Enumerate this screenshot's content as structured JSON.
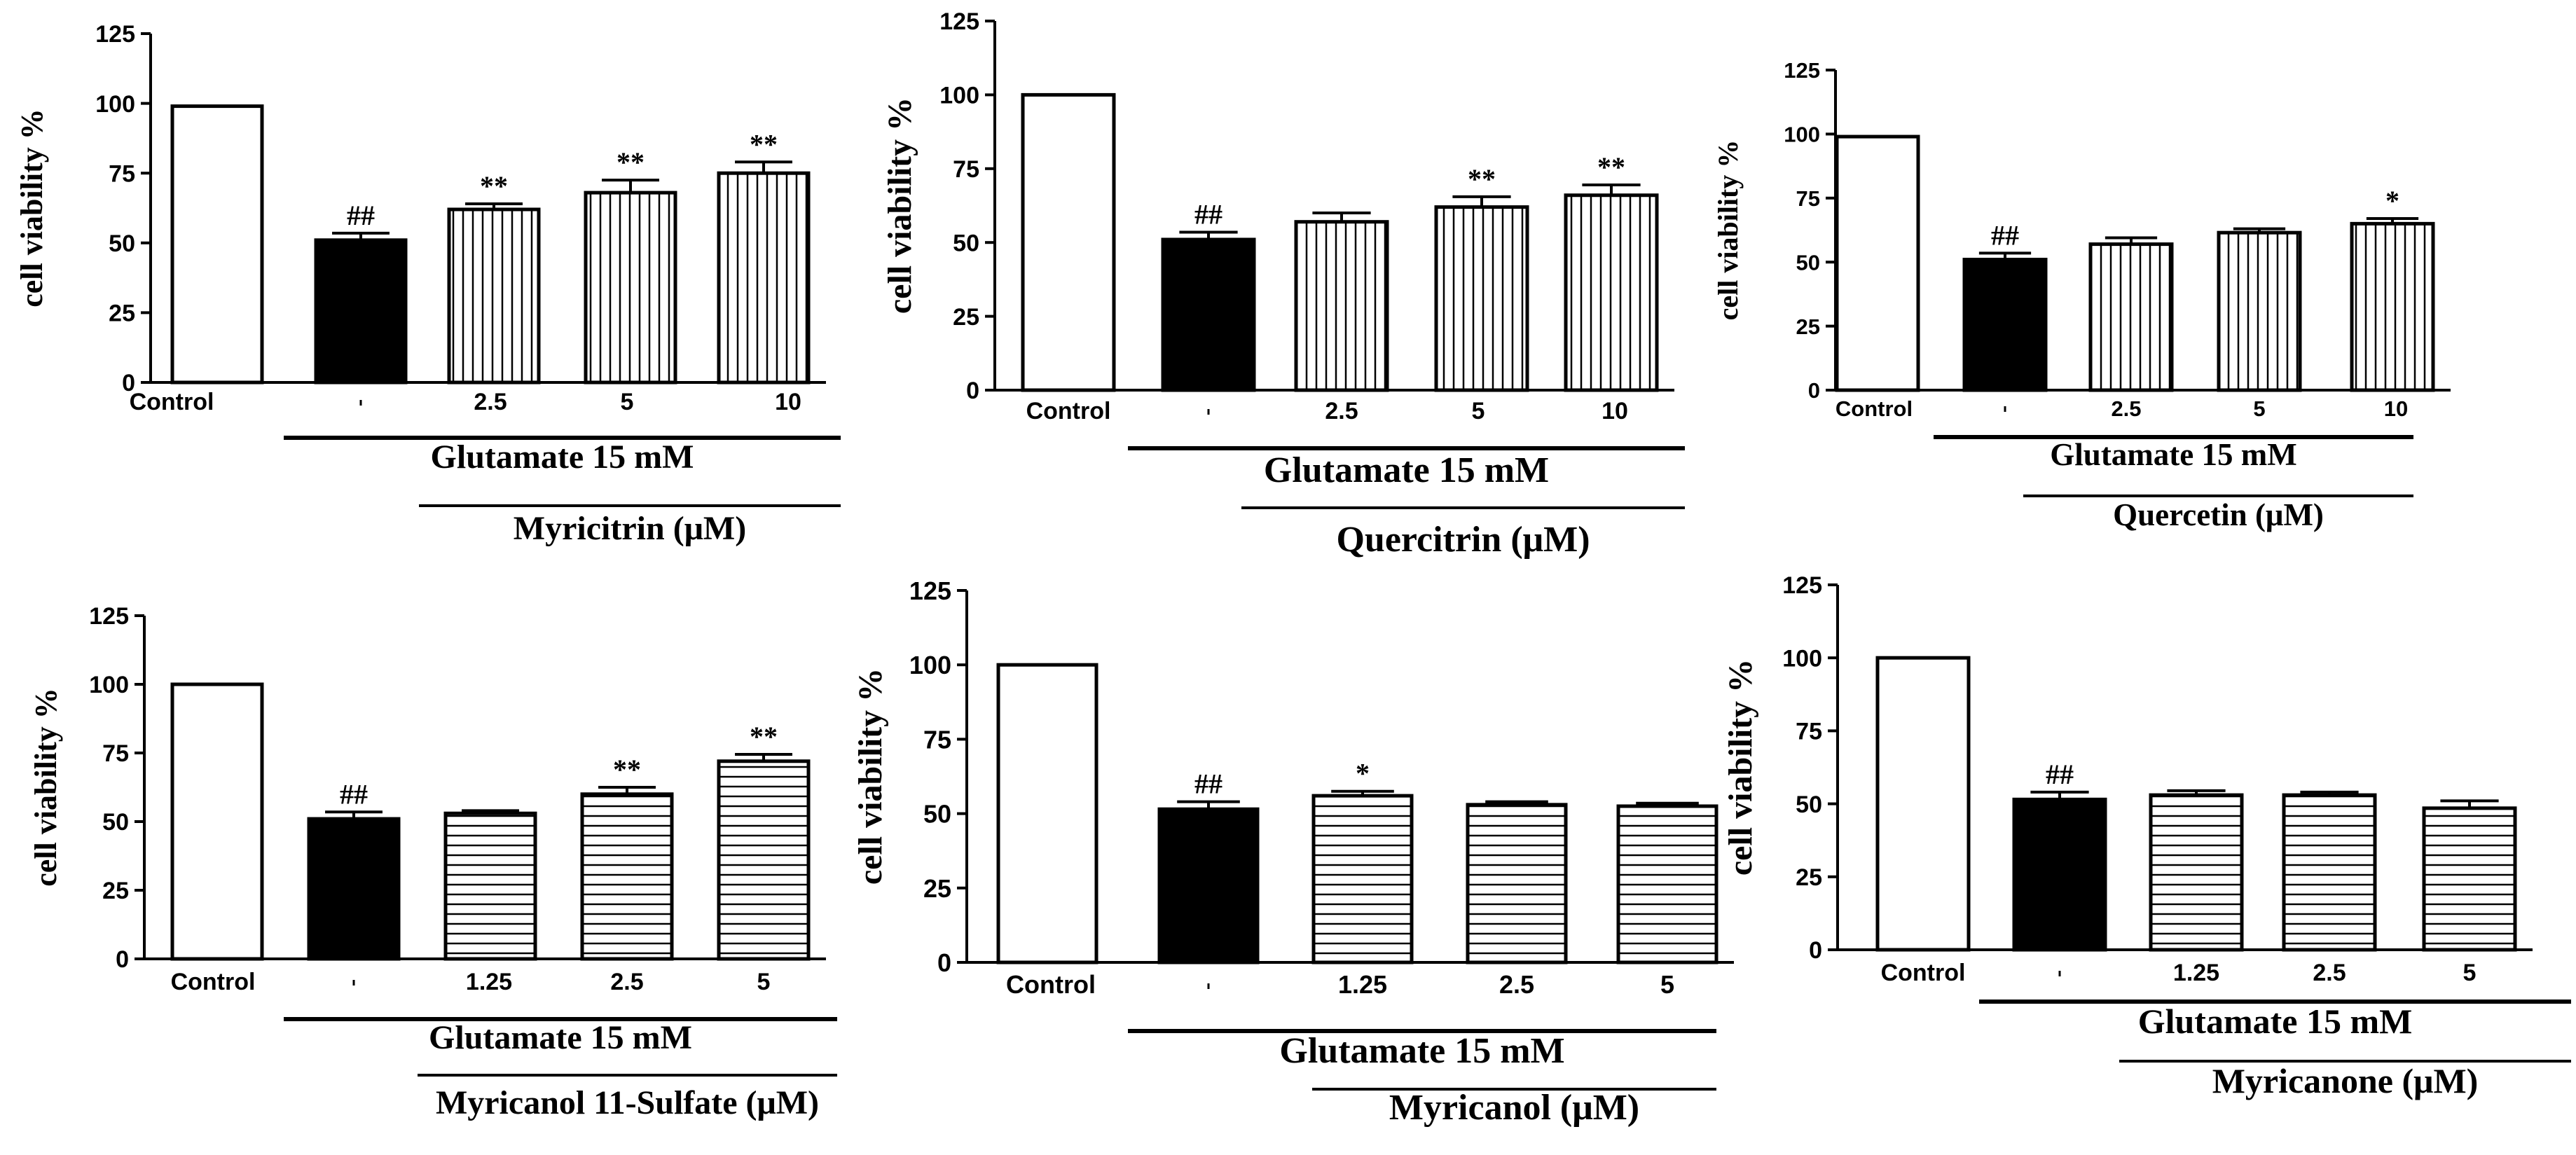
{
  "chart_data": [
    {
      "type": "bar",
      "ylabel": "cell viability %",
      "ylim": [
        0,
        125
      ],
      "yticks": [
        0,
        25,
        50,
        75,
        100,
        125
      ],
      "categories": [
        "Control",
        "",
        "2.5",
        "5",
        "10"
      ],
      "values": [
        99,
        51,
        62,
        68,
        75
      ],
      "errors": [
        0,
        2.5,
        2,
        4.5,
        4
      ],
      "annotations": [
        "",
        "##",
        "**",
        "**",
        "**"
      ],
      "patterns": [
        "open",
        "solid",
        "vertical",
        "vertical",
        "vertical"
      ],
      "group_label": "Glutamate 15 mM",
      "compound_label": "Myricitrin (μM)"
    },
    {
      "type": "bar",
      "ylabel": "cell viability %",
      "ylim": [
        0,
        125
      ],
      "yticks": [
        0,
        25,
        50,
        75,
        100,
        125
      ],
      "categories": [
        "Control",
        "",
        "2.5",
        "5",
        "10"
      ],
      "values": [
        100,
        51,
        57,
        62,
        66
      ],
      "errors": [
        0,
        2.5,
        3,
        3.5,
        3.5
      ],
      "annotations": [
        "",
        "##",
        "",
        "**",
        "**"
      ],
      "patterns": [
        "open",
        "solid",
        "vertical",
        "vertical",
        "vertical"
      ],
      "group_label": "Glutamate 15 mM",
      "compound_label": "Quercitrin (μM)"
    },
    {
      "type": "bar",
      "ylabel": "cell viability %",
      "ylim": [
        0,
        125
      ],
      "yticks": [
        0,
        25,
        50,
        75,
        100,
        125
      ],
      "categories": [
        "Control",
        "",
        "2.5",
        "5",
        "10"
      ],
      "values": [
        99,
        51,
        57,
        61.5,
        65
      ],
      "errors": [
        0,
        2.5,
        2.5,
        1.5,
        2
      ],
      "annotations": [
        "",
        "##",
        "",
        "",
        "*"
      ],
      "patterns": [
        "open",
        "solid",
        "vertical",
        "vertical",
        "vertical"
      ],
      "group_label": "Glutamate 15 mM",
      "compound_label": "Quercetin (μM)"
    },
    {
      "type": "bar",
      "ylabel": "cell viability %",
      "ylim": [
        0,
        125
      ],
      "yticks": [
        0,
        25,
        50,
        75,
        100,
        125
      ],
      "categories": [
        "Control",
        "",
        "1.25",
        "2.5",
        "5"
      ],
      "values": [
        100,
        51,
        53,
        60,
        72
      ],
      "errors": [
        0,
        2.5,
        1,
        2.5,
        2.5
      ],
      "annotations": [
        "",
        "##",
        "",
        "**",
        "**"
      ],
      "patterns": [
        "open",
        "solid",
        "horizontal",
        "horizontal",
        "horizontal"
      ],
      "group_label": "Glutamate 15 mM",
      "compound_label": "Myricanol 11-Sulfate (μM)"
    },
    {
      "type": "bar",
      "ylabel": "cell viability %",
      "ylim": [
        0,
        125
      ],
      "yticks": [
        0,
        25,
        50,
        75,
        100,
        125
      ],
      "categories": [
        "Control",
        "",
        "1.25",
        "2.5",
        "5"
      ],
      "values": [
        100,
        51.5,
        56,
        53,
        52.5
      ],
      "errors": [
        0,
        2.5,
        1.5,
        1,
        1
      ],
      "annotations": [
        "",
        "##",
        "*",
        "",
        ""
      ],
      "patterns": [
        "open",
        "solid",
        "horizontal",
        "horizontal",
        "horizontal"
      ],
      "group_label": "Glutamate 15 mM",
      "compound_label": "Myricanol (μM)"
    },
    {
      "type": "bar",
      "ylabel": "cell viability %",
      "ylim": [
        0,
        125
      ],
      "yticks": [
        0,
        25,
        50,
        75,
        100,
        125
      ],
      "categories": [
        "Control",
        "",
        "1.25",
        "2.5",
        "5"
      ],
      "values": [
        100,
        51.5,
        53,
        53,
        48.5
      ],
      "errors": [
        0,
        2.5,
        1.5,
        1,
        2.5
      ],
      "annotations": [
        "",
        "##",
        "",
        "",
        ""
      ],
      "patterns": [
        "open",
        "solid",
        "horizontal",
        "horizontal",
        "horizontal"
      ],
      "group_label": "Glutamate 15 mM",
      "compound_label": "Myricanone (μM)"
    }
  ]
}
